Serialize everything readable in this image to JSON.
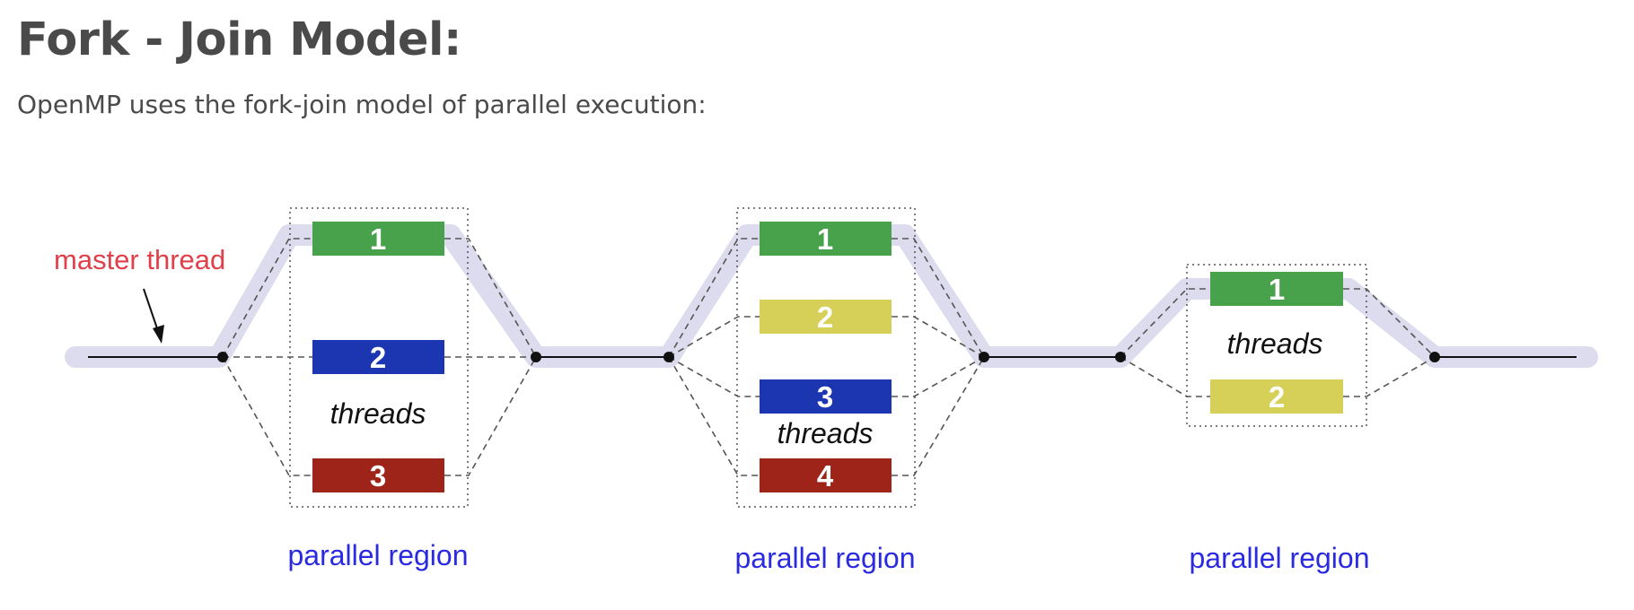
{
  "page": {
    "title": "Fork - Join Model:",
    "intro": "OpenMP uses the fork-join model of parallel execution:"
  },
  "diagram": {
    "master_label": "master thread",
    "threads_label": "threads",
    "colors": {
      "text": "#4a4a4a",
      "master_label": "#e0404a",
      "region_label": "#2a2ae0",
      "lane": "#dcdcee",
      "line": "#555555",
      "dot": "#111111",
      "thread_1": "#48a24c",
      "thread_2_single": "#1c35b0",
      "thread_2_yellow": "#d6cf58",
      "thread_3_blue": "#1c35b0",
      "thread_3_red": "#9e2318",
      "thread_4_red": "#9e2318"
    },
    "regions": [
      {
        "label": "parallel region",
        "threads": [
          {
            "num": "1",
            "color": "#48a24c"
          },
          {
            "num": "2",
            "color": "#1c35b0"
          },
          {
            "num": "3",
            "color": "#9e2318"
          }
        ]
      },
      {
        "label": "parallel region",
        "threads": [
          {
            "num": "1",
            "color": "#48a24c"
          },
          {
            "num": "2",
            "color": "#d6cf58"
          },
          {
            "num": "3",
            "color": "#1c35b0"
          },
          {
            "num": "4",
            "color": "#9e2318"
          }
        ]
      },
      {
        "label": "parallel region",
        "threads": [
          {
            "num": "1",
            "color": "#48a24c"
          },
          {
            "num": "2",
            "color": "#d6cf58"
          }
        ]
      }
    ]
  }
}
